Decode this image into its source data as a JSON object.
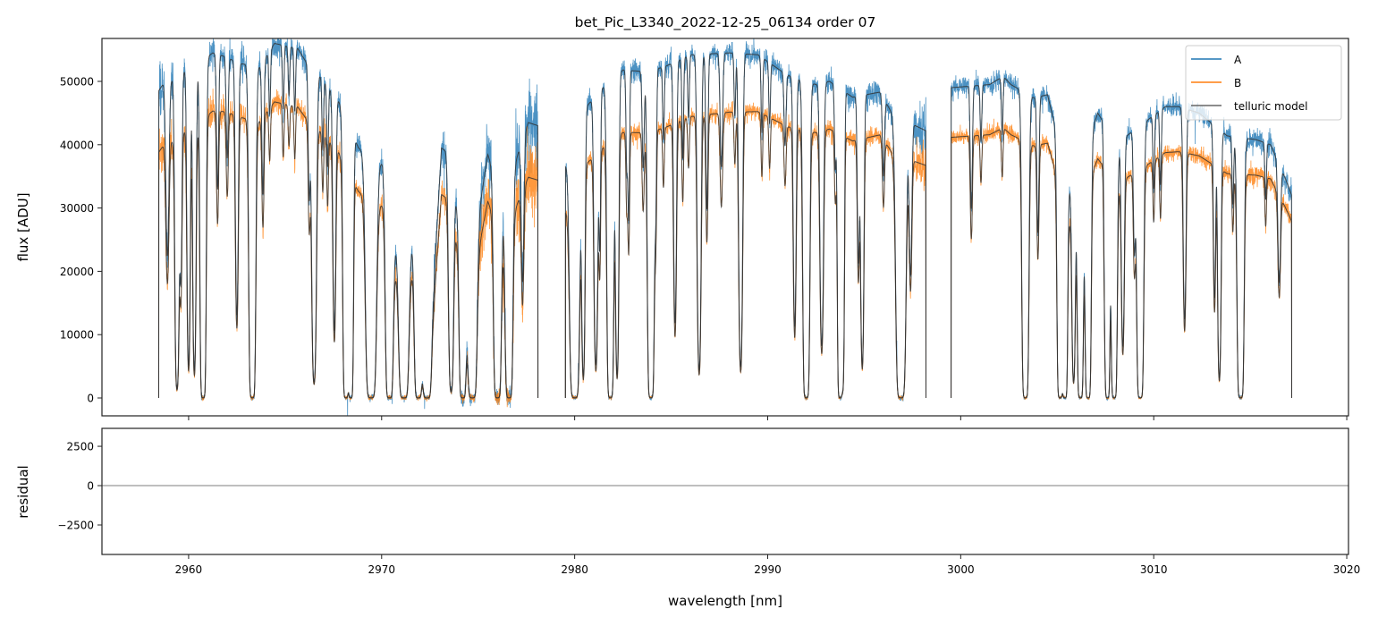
{
  "chart_data": {
    "type": "line",
    "title": "bet_Pic_L3340_2022-12-25_06134  order 07",
    "xlabel": "wavelength [nm]",
    "xlim": [
      2955.51,
      3020.09
    ],
    "xticks": [
      2960,
      2970,
      2980,
      2990,
      3000,
      3010,
      3020
    ],
    "xtick_labels": [
      "2960",
      "2970",
      "2980",
      "2990",
      "3000",
      "3010",
      "3020"
    ],
    "grid": false,
    "legend": {
      "placement": "top-right",
      "entries": [
        "A",
        "B",
        "telluric model"
      ]
    },
    "panels": [
      {
        "name": "flux",
        "ylabel": "flux [ADU]",
        "ylim": [
          -2825,
          56780
        ],
        "yticks": [
          0,
          10000,
          20000,
          30000,
          40000,
          50000
        ],
        "ytick_labels": [
          "0",
          "10000",
          "20000",
          "30000",
          "40000",
          "50000"
        ]
      },
      {
        "name": "residual",
        "ylabel": "residual",
        "ylim": [
          -4375,
          3640
        ],
        "yticks": [
          -2500,
          0,
          2500
        ],
        "ytick_labels": [
          "−2500",
          "0",
          "2500"
        ],
        "zero_line": true
      }
    ],
    "colors": {
      "A": "#1f77b4",
      "B": "#ff7f0e",
      "model": "#333333",
      "legend_model": "#666666"
    },
    "segments": [
      [
        2958.45,
        2978.1
      ],
      [
        2979.52,
        2998.2
      ],
      [
        2999.5,
        3017.15
      ]
    ],
    "series": [
      {
        "name": "A",
        "noise_rms": 850,
        "continuum": [
          [
            2958.45,
            48500
          ],
          [
            2958.7,
            49700
          ],
          [
            2959.1,
            50200
          ],
          [
            2959.7,
            51500
          ],
          [
            2960.5,
            52800
          ],
          [
            2961.25,
            54500
          ],
          [
            2961.8,
            54000
          ],
          [
            2962.7,
            52800
          ],
          [
            2963.7,
            52300
          ],
          [
            2964.45,
            56000
          ],
          [
            2965.65,
            55200
          ],
          [
            2966.1,
            53000
          ],
          [
            2966.9,
            50500
          ],
          [
            2967.75,
            47000
          ],
          [
            2968.8,
            39500
          ],
          [
            2970.05,
            37000
          ],
          [
            2970.6,
            24200
          ],
          [
            2971.6,
            24500
          ],
          [
            2972.1,
            15800
          ],
          [
            2972.7,
            18000
          ],
          [
            2973.1,
            39500
          ],
          [
            2973.3,
            39000
          ],
          [
            2973.8,
            32500
          ],
          [
            2974.4,
            16500
          ],
          [
            2975.5,
            38500
          ],
          [
            2976.3,
            30500
          ],
          [
            2977.2,
            40000
          ],
          [
            2977.6,
            43500
          ],
          [
            2978.1,
            43000
          ],
          [
            2979.52,
            36800
          ],
          [
            2980.6,
            46000
          ],
          [
            2981.6,
            49500
          ],
          [
            2982.5,
            51800
          ],
          [
            2983.8,
            51500
          ],
          [
            2984.8,
            52500
          ],
          [
            2986.0,
            54200
          ],
          [
            2988.0,
            54500
          ],
          [
            2989.5,
            54200
          ],
          [
            2991.0,
            51000
          ],
          [
            2992.5,
            49500
          ],
          [
            2993.2,
            50000
          ],
          [
            2994.4,
            47500
          ],
          [
            2995.8,
            48300
          ],
          [
            2996.5,
            44700
          ],
          [
            2998.2,
            42200
          ],
          [
            2999.5,
            49000
          ],
          [
            3001.5,
            49500
          ],
          [
            3002.2,
            50800
          ],
          [
            3002.6,
            49500
          ],
          [
            3003.8,
            47400
          ],
          [
            3004.5,
            47900
          ],
          [
            3005.7,
            32300
          ],
          [
            3007.1,
            45000
          ],
          [
            3008.2,
            39600
          ],
          [
            3008.6,
            41400
          ],
          [
            3010.6,
            46000
          ],
          [
            3011.3,
            46000
          ],
          [
            3012.35,
            45000
          ],
          [
            3013.8,
            41400
          ],
          [
            3015.3,
            40800
          ],
          [
            3016.05,
            40000
          ],
          [
            3016.8,
            34800
          ],
          [
            3017.15,
            32000
          ]
        ]
      },
      {
        "name": "B",
        "noise_rms": 700,
        "continuum_ratio": [
          [
            2958.45,
            0.8
          ],
          [
            2962,
            0.84
          ],
          [
            2967,
            0.83
          ],
          [
            2978.1,
            0.8
          ],
          [
            2979.52,
            0.8
          ],
          [
            2986,
            0.82
          ],
          [
            2998.2,
            0.87
          ],
          [
            2999.5,
            0.84
          ],
          [
            3004,
            0.84
          ],
          [
            3010,
            0.84
          ],
          [
            3017.15,
            0.87
          ]
        ]
      }
    ],
    "residual_noise_profile": [
      [
        2958.45,
        2600
      ],
      [
        2959.5,
        1500
      ],
      [
        2961,
        1200
      ],
      [
        2969,
        1000
      ],
      [
        2973,
        1200
      ],
      [
        2975,
        2500
      ],
      [
        2978.1,
        3500
      ],
      [
        2979.52,
        900
      ],
      [
        2990,
        800
      ],
      [
        2997,
        1000
      ],
      [
        2998.2,
        2500
      ],
      [
        2999.5,
        800
      ],
      [
        3010,
        700
      ],
      [
        3017.15,
        1000
      ]
    ],
    "telluric_lines": [
      [
        2958.9,
        0.8,
        0.07
      ],
      [
        2959.4,
        3.5,
        0.07
      ],
      [
        2959.6,
        1.0,
        0.05
      ],
      [
        2960.0,
        2.3,
        0.06
      ],
      [
        2960.3,
        2.5,
        0.06
      ],
      [
        2960.75,
        8,
        0.08
      ],
      [
        2961.5,
        0.5,
        0.05
      ],
      [
        2962.0,
        0.35,
        0.05
      ],
      [
        2962.5,
        1.4,
        0.06
      ],
      [
        2963.3,
        8,
        0.09
      ],
      [
        2963.85,
        0.5,
        0.05
      ],
      [
        2964.2,
        0.2,
        0.04
      ],
      [
        2964.9,
        0.2,
        0.04
      ],
      [
        2965.2,
        0.15,
        0.04
      ],
      [
        2965.5,
        0.2,
        0.04
      ],
      [
        2966.25,
        0.5,
        0.05
      ],
      [
        2966.5,
        3.0,
        0.08
      ],
      [
        2966.95,
        0.25,
        0.04
      ],
      [
        2967.2,
        0.3,
        0.04
      ],
      [
        2967.55,
        1.5,
        0.06
      ],
      [
        2968.15,
        8,
        0.08
      ],
      [
        2968.4,
        8,
        0.07
      ],
      [
        2969.45,
        8,
        0.14
      ],
      [
        2970.4,
        8,
        0.1
      ],
      [
        2971.15,
        8,
        0.13
      ],
      [
        2971.9,
        8,
        0.1
      ],
      [
        2972.35,
        8,
        0.12
      ],
      [
        2973.6,
        3.5,
        0.08
      ],
      [
        2974.2,
        8,
        0.09
      ],
      [
        2974.7,
        8,
        0.12
      ],
      [
        2976.0,
        8,
        0.1
      ],
      [
        2976.6,
        8,
        0.1
      ],
      [
        2977.3,
        0.8,
        0.06
      ],
      [
        2980.0,
        8,
        0.13
      ],
      [
        2980.45,
        2.5,
        0.06
      ],
      [
        2981.1,
        2.2,
        0.07
      ],
      [
        2981.3,
        0.7,
        0.04
      ],
      [
        2981.85,
        8,
        0.09
      ],
      [
        2982.2,
        2.6,
        0.06
      ],
      [
        2982.7,
        0.35,
        0.04
      ],
      [
        2982.8,
        0.6,
        0.04
      ],
      [
        2983.55,
        0.35,
        0.05
      ],
      [
        2983.95,
        8,
        0.09
      ],
      [
        2984.2,
        0.5,
        0.04
      ],
      [
        2984.6,
        0.25,
        0.04
      ],
      [
        2985.2,
        1.5,
        0.06
      ],
      [
        2985.6,
        0.35,
        0.04
      ],
      [
        2985.9,
        0.2,
        0.04
      ],
      [
        2986.45,
        2.5,
        0.07
      ],
      [
        2986.85,
        0.6,
        0.05
      ],
      [
        2987.6,
        0.4,
        0.06
      ],
      [
        2988.3,
        0.2,
        0.04
      ],
      [
        2988.6,
        2.4,
        0.07
      ],
      [
        2989.7,
        0.25,
        0.04
      ],
      [
        2990.1,
        0.2,
        0.04
      ],
      [
        2990.9,
        0.25,
        0.05
      ],
      [
        2991.4,
        1.5,
        0.06
      ],
      [
        2992.0,
        8,
        0.09
      ],
      [
        2992.8,
        1.8,
        0.07
      ],
      [
        2993.5,
        0.3,
        0.04
      ],
      [
        2993.75,
        8,
        0.07
      ],
      [
        2993.9,
        2.8,
        0.05
      ],
      [
        2994.7,
        0.8,
        0.05
      ],
      [
        2994.9,
        2.2,
        0.06
      ],
      [
        2996.0,
        0.3,
        0.05
      ],
      [
        2996.9,
        8,
        0.13
      ],
      [
        2997.4,
        0.8,
        0.06
      ],
      [
        3000.55,
        0.5,
        0.05
      ],
      [
        3001.05,
        0.2,
        0.04
      ],
      [
        3002.15,
        0.2,
        0.04
      ],
      [
        3003.35,
        8,
        0.09
      ],
      [
        3004.0,
        0.6,
        0.05
      ],
      [
        3005.15,
        8,
        0.08
      ],
      [
        3005.4,
        8,
        0.07
      ],
      [
        3005.85,
        2.5,
        0.06
      ],
      [
        3006.2,
        8,
        0.08
      ],
      [
        3006.6,
        8,
        0.08
      ],
      [
        3007.45,
        0.4,
        0.04
      ],
      [
        3007.6,
        8,
        0.07
      ],
      [
        3007.95,
        8,
        0.08
      ],
      [
        3008.4,
        1.6,
        0.06
      ],
      [
        3009.0,
        0.6,
        0.05
      ],
      [
        3009.3,
        8,
        0.09
      ],
      [
        3010.0,
        0.3,
        0.04
      ],
      [
        3010.35,
        0.3,
        0.04
      ],
      [
        3011.6,
        1.3,
        0.06
      ],
      [
        3013.15,
        1.0,
        0.05
      ],
      [
        3013.4,
        2.6,
        0.06
      ],
      [
        3014.1,
        0.3,
        0.04
      ],
      [
        3014.5,
        8,
        0.09
      ],
      [
        3015.8,
        0.25,
        0.04
      ],
      [
        3016.5,
        0.7,
        0.06
      ]
    ]
  }
}
